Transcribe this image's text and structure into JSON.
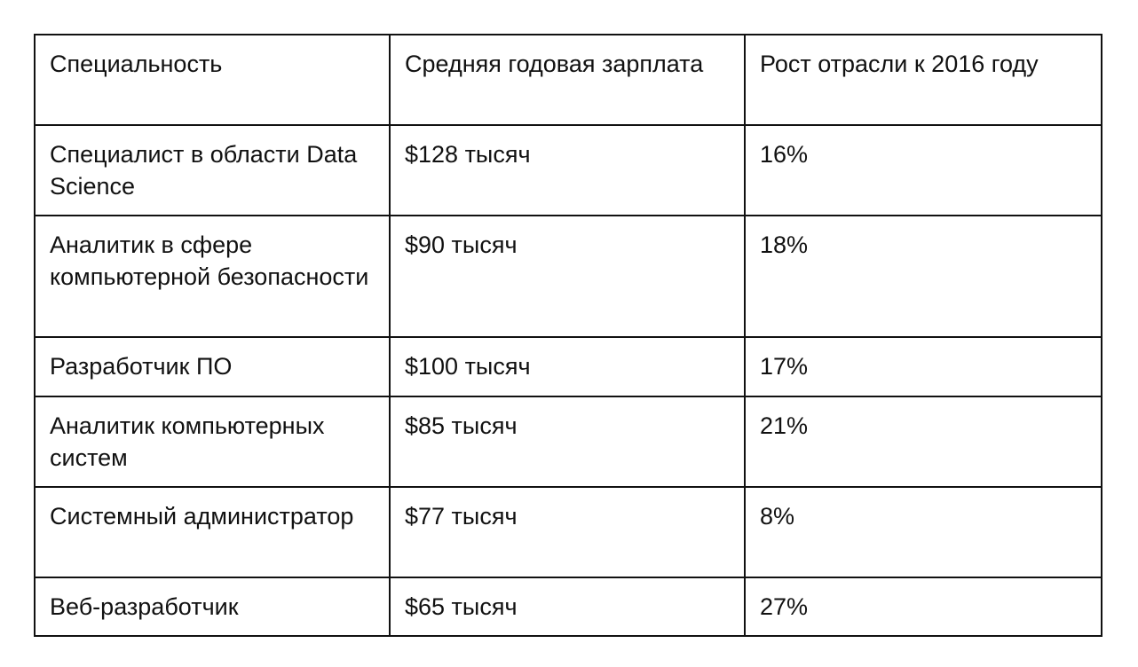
{
  "table": {
    "headers": [
      "Специальность",
      "Средняя годовая зарплата",
      "Рост отрасли к 2016 году"
    ],
    "rows": [
      {
        "specialty": "Специалист в области Data Science",
        "salary": "$128 тысяч",
        "growth": "16%"
      },
      {
        "specialty": "Аналитик в сфере компьютерной безопасности",
        "salary": "$90 тысяч",
        "growth": "18%"
      },
      {
        "specialty": "Разработчик ПО",
        "salary": "$100 тысяч",
        "growth": "17%"
      },
      {
        "specialty": "Аналитик компьютерных систем",
        "salary": "$85 тысяч",
        "growth": "21%"
      },
      {
        "specialty": "Системный администратор",
        "salary": "$77 тысяч",
        "growth": "8%"
      },
      {
        "specialty": "Веб-разработчик",
        "salary": "$65 тысяч",
        "growth": "27%"
      }
    ]
  }
}
